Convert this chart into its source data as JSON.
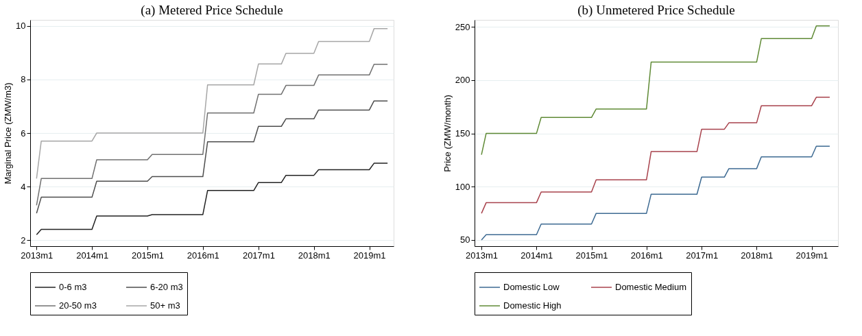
{
  "chart_data": [
    {
      "type": "line",
      "title": "(a) Metered Price Schedule",
      "ylabel": "Marginal Price (ZMW/m3)",
      "xlim": [
        "2012-11-20",
        "2019-06-10"
      ],
      "ylim": [
        1.77,
        10.23
      ],
      "yticks": [
        2,
        4,
        6,
        8,
        10
      ],
      "xticks": [
        {
          "value": "2013-01",
          "label": "2013m1"
        },
        {
          "value": "2014-01",
          "label": "2014m1"
        },
        {
          "value": "2015-01",
          "label": "2015m1"
        },
        {
          "value": "2016-01",
          "label": "2016m1"
        },
        {
          "value": "2017-01",
          "label": "2017m1"
        },
        {
          "value": "2018-01",
          "label": "2018m1"
        },
        {
          "value": "2019-01",
          "label": "2019m1"
        }
      ],
      "grid": "y",
      "legend": "bottom",
      "marker": "none",
      "line_style": "solid",
      "series": [
        {
          "name": "0-6 m3",
          "color": "#222222",
          "x": [
            "2013-01",
            "2013-02",
            "2014-01",
            "2014-02",
            "2015-01",
            "2015-02",
            "2016-01",
            "2016-02",
            "2016-12",
            "2017-01",
            "2017-06",
            "2017-07",
            "2018-01",
            "2018-02",
            "2019-01",
            "2019-02",
            "2019-05"
          ],
          "values": [
            2.2,
            2.4,
            2.4,
            2.9,
            2.9,
            2.95,
            2.95,
            3.85,
            3.85,
            4.15,
            4.15,
            4.42,
            4.42,
            4.63,
            4.63,
            4.87,
            4.87
          ]
        },
        {
          "name": "6-20 m3",
          "color": "#4d4d4d",
          "x": [
            "2013-01",
            "2013-02",
            "2014-01",
            "2014-02",
            "2015-01",
            "2015-02",
            "2016-01",
            "2016-02",
            "2016-12",
            "2017-01",
            "2017-06",
            "2017-07",
            "2018-01",
            "2018-02",
            "2019-01",
            "2019-02",
            "2019-05"
          ],
          "values": [
            3.0,
            3.6,
            3.6,
            4.2,
            4.2,
            4.37,
            4.37,
            5.67,
            5.67,
            6.25,
            6.25,
            6.53,
            6.53,
            6.86,
            6.86,
            7.2,
            7.2
          ]
        },
        {
          "name": "20-50 m3",
          "color": "#707070",
          "x": [
            "2013-01",
            "2013-02",
            "2014-01",
            "2014-02",
            "2015-01",
            "2015-02",
            "2016-01",
            "2016-02",
            "2016-12",
            "2017-01",
            "2017-06",
            "2017-07",
            "2018-01",
            "2018-02",
            "2019-01",
            "2019-02",
            "2019-05"
          ],
          "values": [
            3.3,
            4.3,
            4.3,
            5.0,
            5.0,
            5.2,
            5.2,
            6.75,
            6.75,
            7.45,
            7.45,
            7.78,
            7.78,
            8.17,
            8.17,
            8.57,
            8.57
          ]
        },
        {
          "name": "50+ m3",
          "color": "#a6a6a6",
          "x": [
            "2013-01",
            "2013-02",
            "2014-01",
            "2014-02",
            "2016-01",
            "2016-02",
            "2016-12",
            "2017-01",
            "2017-06",
            "2017-07",
            "2018-01",
            "2018-02",
            "2019-01",
            "2019-02",
            "2019-05"
          ],
          "values": [
            4.3,
            5.7,
            5.7,
            6.0,
            6.0,
            7.8,
            7.8,
            8.58,
            8.58,
            8.98,
            8.98,
            9.42,
            9.42,
            9.9,
            9.9
          ]
        }
      ]
    },
    {
      "type": "line",
      "title": "(b) Unmetered Price Schedule",
      "ylabel": "Price (ZMW/month)",
      "xlim": [
        "2012-11-16",
        "2019-06-25"
      ],
      "ylim": [
        44.2,
        256.6
      ],
      "yticks": [
        50,
        100,
        150,
        200,
        250
      ],
      "xticks": [
        {
          "value": "2013-01",
          "label": "2013m1"
        },
        {
          "value": "2014-01",
          "label": "2014m1"
        },
        {
          "value": "2015-01",
          "label": "2015m1"
        },
        {
          "value": "2016-01",
          "label": "2016m1"
        },
        {
          "value": "2017-01",
          "label": "2017m1"
        },
        {
          "value": "2018-01",
          "label": "2018m1"
        },
        {
          "value": "2019-01",
          "label": "2019m1"
        }
      ],
      "grid": "y",
      "legend": "bottom",
      "marker": "none",
      "line_style": "solid",
      "series": [
        {
          "name": "Domestic Low",
          "color": "#3d6a92",
          "x": [
            "2013-01",
            "2013-02",
            "2014-01",
            "2014-02",
            "2015-01",
            "2015-02",
            "2016-01",
            "2016-02",
            "2016-12",
            "2017-01",
            "2017-06",
            "2017-07",
            "2018-01",
            "2018-02",
            "2019-01",
            "2019-02",
            "2019-05"
          ],
          "values": [
            50,
            55,
            55,
            65,
            65,
            75,
            75,
            93,
            93,
            109,
            109,
            117,
            117,
            128,
            128,
            138,
            138
          ]
        },
        {
          "name": "Domestic Medium",
          "color": "#a8424c",
          "x": [
            "2013-01",
            "2013-02",
            "2014-01",
            "2014-02",
            "2015-01",
            "2015-02",
            "2016-01",
            "2016-02",
            "2016-12",
            "2017-01",
            "2017-06",
            "2017-07",
            "2018-01",
            "2018-02",
            "2019-01",
            "2019-02",
            "2019-05"
          ],
          "values": [
            75,
            85,
            85,
            95,
            95,
            106.5,
            106.5,
            133,
            133,
            154,
            154,
            160,
            160,
            176,
            176,
            184,
            184
          ]
        },
        {
          "name": "Domestic High",
          "color": "#5f8a35",
          "x": [
            "2013-01",
            "2013-02",
            "2014-01",
            "2014-02",
            "2015-01",
            "2015-02",
            "2016-01",
            "2016-02",
            "2018-01",
            "2018-02",
            "2019-01",
            "2019-02",
            "2019-05"
          ],
          "values": [
            130,
            150,
            150,
            165,
            165,
            173,
            173,
            217,
            217,
            239,
            239,
            251,
            251
          ]
        }
      ]
    }
  ]
}
